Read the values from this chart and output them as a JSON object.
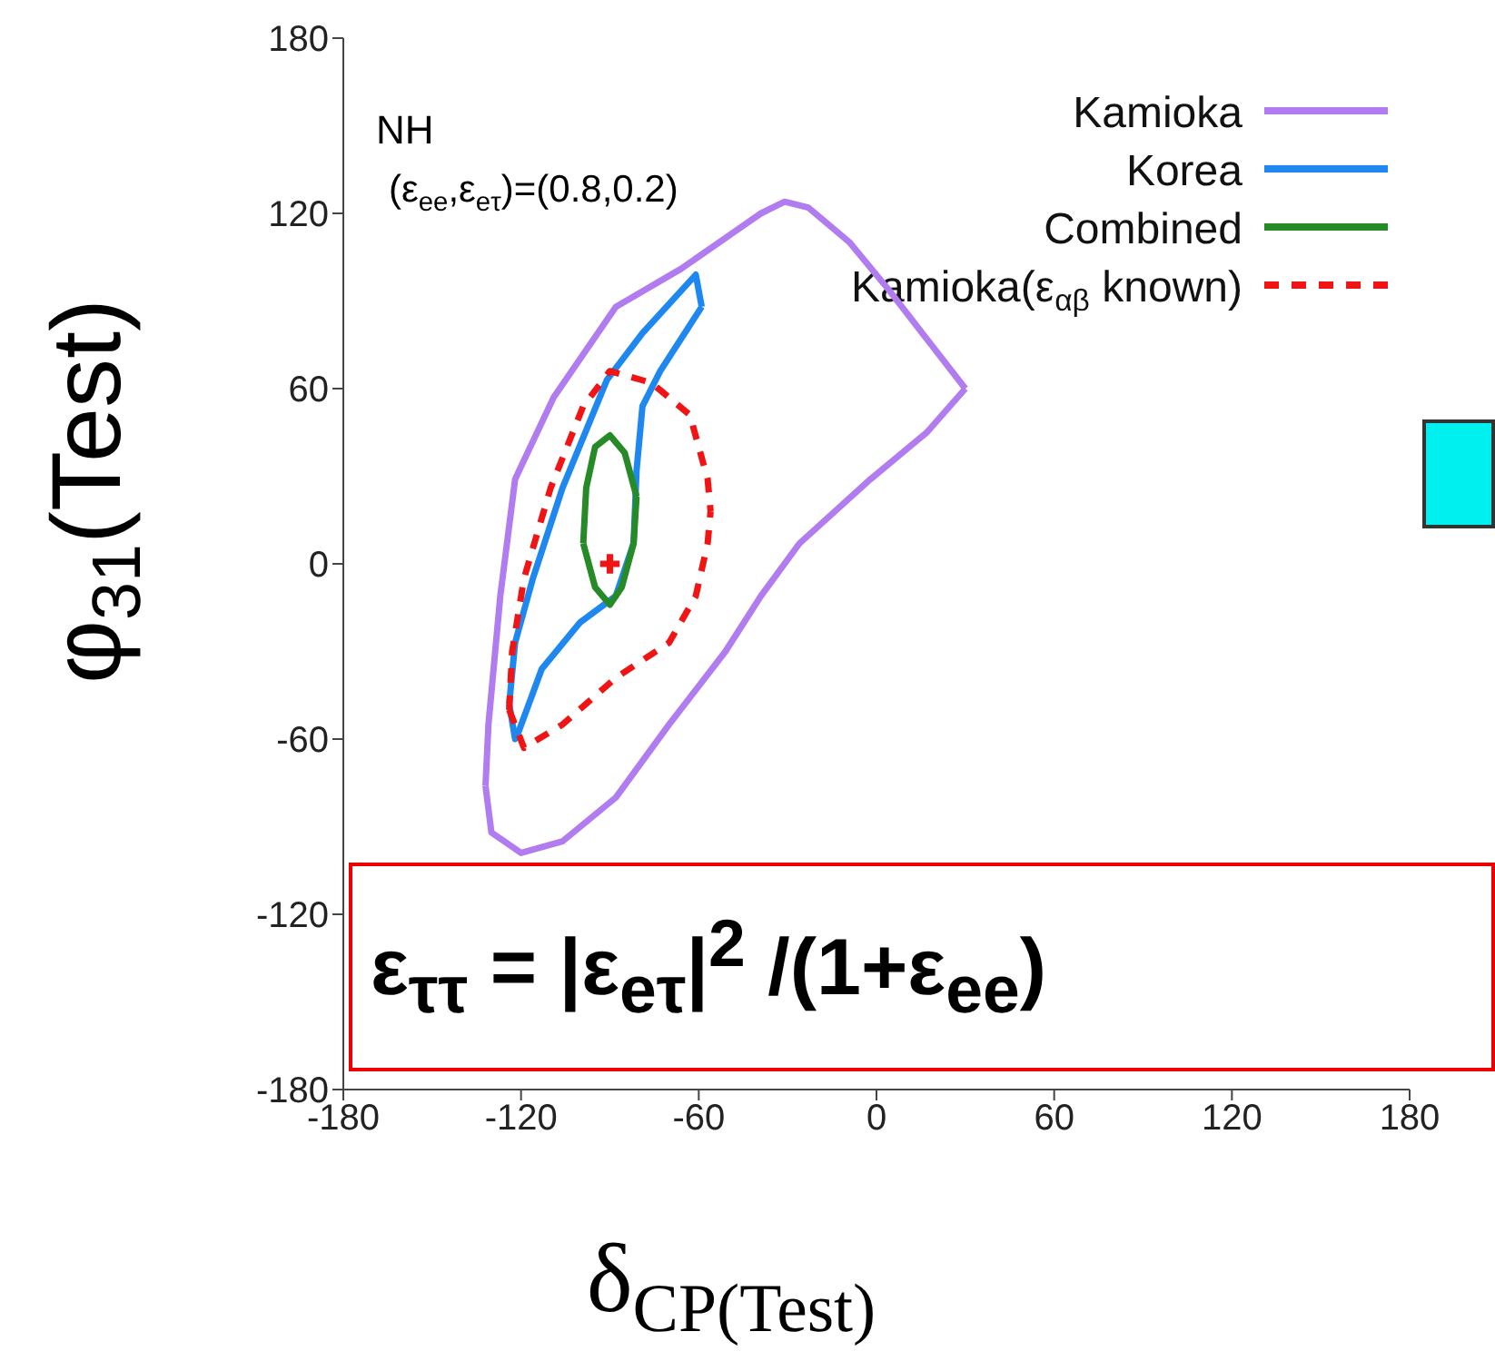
{
  "chart_data": {
    "type": "line",
    "xlabel": "δ$_{CP(Test)}$",
    "ylabel": "φ$_{31}$(Test)",
    "xlim": [
      -180,
      180
    ],
    "xticks": [
      -180,
      -120,
      -60,
      0,
      60,
      120,
      180
    ],
    "ylim": [
      -180,
      180
    ],
    "yticks": [
      -180,
      -120,
      -60,
      0,
      60,
      120,
      180
    ],
    "grid": false,
    "legend": "top right",
    "marker": "none",
    "line_style": "solid",
    "annotations": [
      "NH",
      "(ε$_{ee}$,ε$_{eτ}$)=(0.8,0.2)",
      "ε$_{ττ}$ = |ε$_{eτ}$|$^{2}$ /(1+ε$_{ee}$)"
    ],
    "series": [
      {
        "name": "Kamioka",
        "color": "#b07cf0",
        "x": [
          -132,
          -131,
          -127,
          -122,
          -109,
          -88,
          -66,
          -39,
          -31,
          -23,
          -9,
          4,
          30,
          null,
          -132,
          -130,
          -120,
          -106,
          -88,
          -70,
          -51,
          -39,
          -26,
          -2,
          17,
          30
        ],
        "values": [
          -76,
          -55,
          -11,
          29,
          57,
          88,
          101,
          120,
          124,
          122,
          110,
          94,
          60,
          null,
          -76,
          -92,
          -99,
          -95,
          -80,
          -55,
          -30,
          -11,
          7,
          29,
          45,
          60
        ]
      },
      {
        "name": "Korea",
        "color": "#1e88f0",
        "x": [
          -124,
          -122,
          -116,
          -106,
          -91,
          -79,
          -61,
          -59,
          null,
          -124,
          -122,
          -121,
          -113,
          -100,
          -88,
          -82,
          -81,
          -79,
          -73,
          -59
        ],
        "values": [
          -48,
          -27,
          -5,
          26,
          63,
          79,
          99,
          88,
          null,
          -48,
          -60,
          -58,
          -36,
          -20,
          -11,
          7,
          32,
          54,
          66,
          88
        ]
      },
      {
        "name": "Combined",
        "color": "#268a26",
        "x": [
          -99,
          -98,
          -95,
          -90,
          -85,
          -81,
          null,
          -99,
          -95,
          -90,
          -86,
          -82,
          -81
        ],
        "values": [
          7,
          26,
          40,
          44,
          38,
          23,
          null,
          7,
          -8,
          -14,
          -8,
          7,
          23
        ]
      },
      {
        "name": "Kamioka(ε$_{αβ}$ known)",
        "color": "#f01414",
        "line_style": "dashed",
        "x": [
          -124,
          -123,
          -119,
          -110,
          -99,
          -90,
          -76,
          -63,
          -57,
          -56,
          null,
          -124,
          -119,
          -106,
          -88,
          -70,
          -61,
          -57,
          -56
        ],
        "values": [
          -50,
          -30,
          -5,
          26,
          54,
          66,
          62,
          51,
          29,
          18,
          null,
          -50,
          -63,
          -55,
          -39,
          -27,
          -11,
          7,
          18
        ]
      },
      {
        "type": "scatter",
        "marker": "cross",
        "color": "#f01414",
        "x": [
          -90
        ],
        "values": [
          0
        ]
      }
    ]
  }
}
